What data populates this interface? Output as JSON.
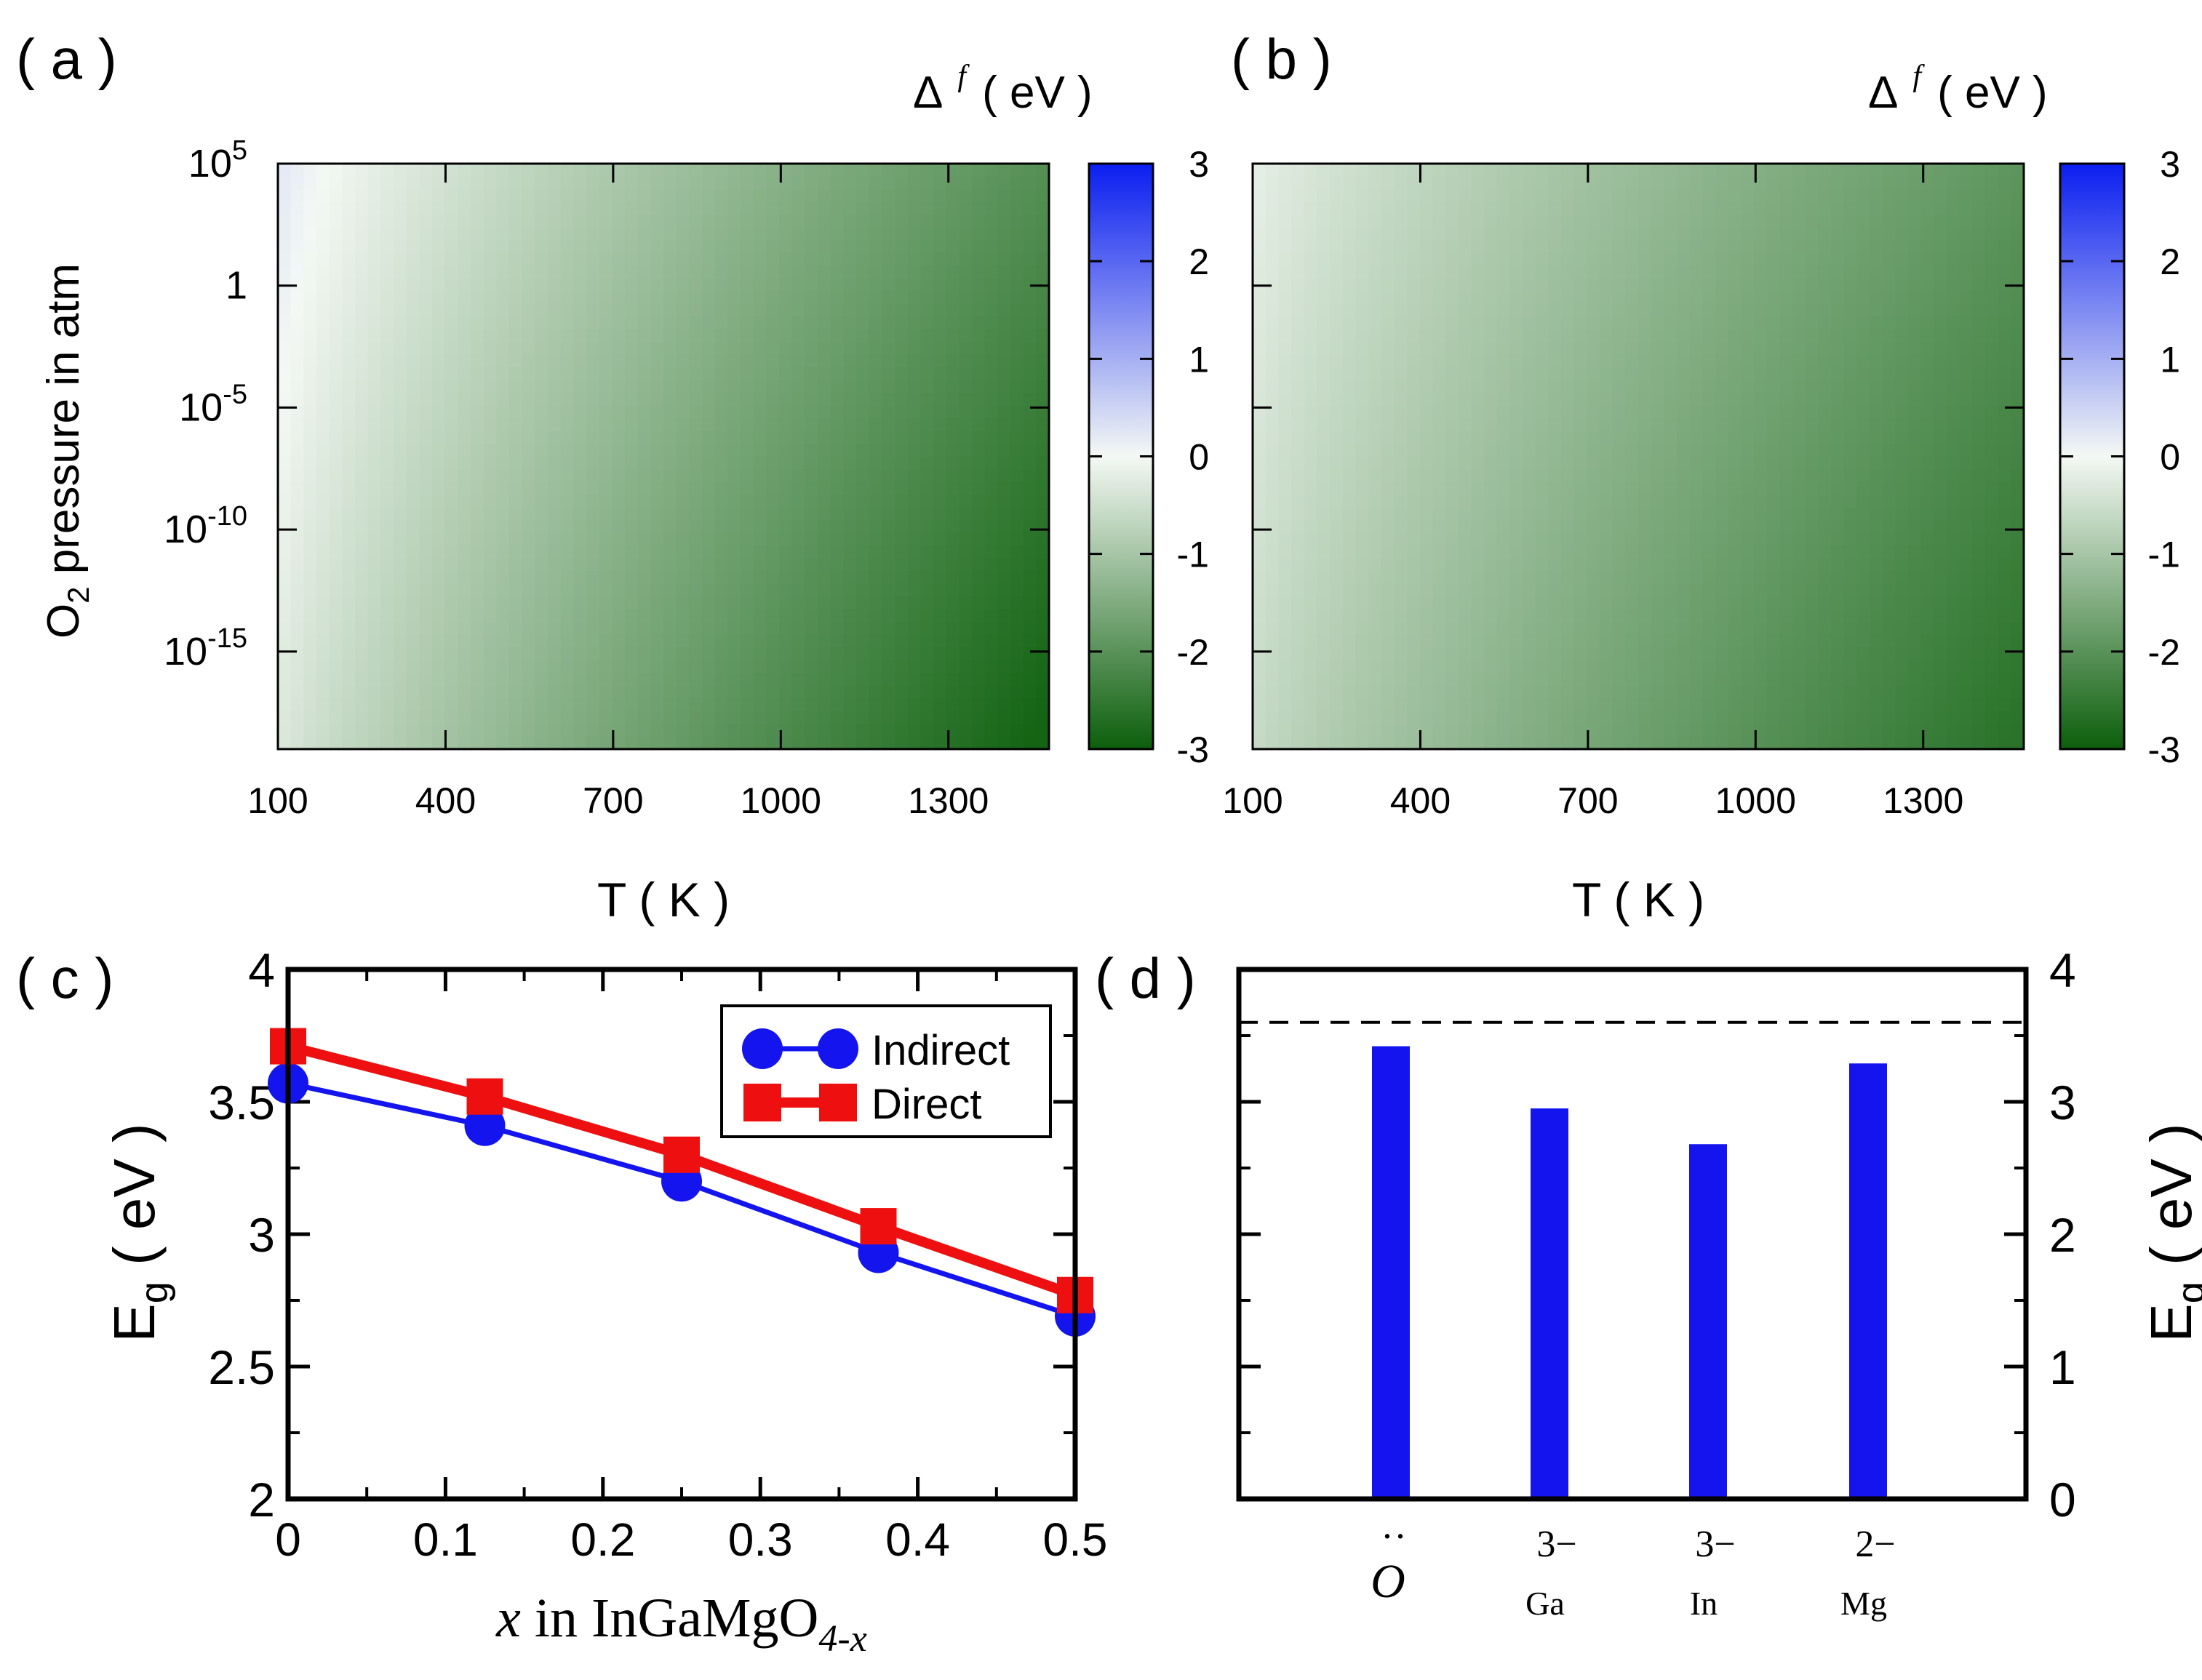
{
  "colors": {
    "map_low": "#0c5f0c",
    "map_zero": "#f4f8f4",
    "map_high": "#0a1ef0",
    "indirect": "#1414ee",
    "direct": "#ee1010",
    "bar": "#1414ee"
  },
  "chart_data": [
    {
      "type": "heatmap",
      "panel_label": "( a )",
      "xlabel": "T ( K )",
      "ylabel_main": "O",
      "ylabel_sub": "2",
      "ylabel_rest": " pressure in atm",
      "x_ticks": [
        "100",
        "400",
        "700",
        "1000",
        "1300"
      ],
      "x_tick_values": [
        100,
        400,
        700,
        1000,
        1300
      ],
      "xlim": [
        100,
        1480
      ],
      "y_ticks": [
        {
          "base": "10",
          "exp": "5",
          "log": 5
        },
        {
          "base": "1",
          "exp": "",
          "log": 0
        },
        {
          "base": "10",
          "exp": "-5",
          "log": -5
        },
        {
          "base": "10",
          "exp": "-10",
          "log": -10
        },
        {
          "base": "10",
          "exp": "-15",
          "log": -15
        }
      ],
      "ylim_log10": [
        -19,
        5
      ],
      "colorbar_label": "Δ",
      "colorbar_label_sup": "f",
      "colorbar_unit": "( eV )",
      "colorbar_ticks": [
        "3",
        "2",
        "1",
        "0",
        "-1",
        "-2",
        "-3"
      ],
      "colorbar_range": [
        -3,
        3
      ],
      "field_model": {
        "at_100K_high_p": 0.25,
        "at_1480K_low_p": -2.9,
        "logp_weight": 0.018
      }
    },
    {
      "type": "heatmap",
      "panel_label": "( b )",
      "xlabel": "T ( K )",
      "x_ticks": [
        "100",
        "400",
        "700",
        "1000",
        "1300"
      ],
      "x_tick_values": [
        100,
        400,
        700,
        1000,
        1300
      ],
      "xlim": [
        100,
        1480
      ],
      "ylim_log10": [
        -19,
        5
      ],
      "colorbar_label": "Δ",
      "colorbar_label_sup": "f",
      "colorbar_unit": "( eV )",
      "colorbar_ticks": [
        "3",
        "2",
        "1",
        "0",
        "-1",
        "-2",
        "-3"
      ],
      "colorbar_range": [
        -3,
        3
      ],
      "field_model": {
        "at_100K_high_p": -0.15,
        "at_1480K_low_p": -2.6,
        "logp_weight": 0.018
      }
    },
    {
      "type": "line",
      "panel_label": "( c )",
      "ylabel_main": "E",
      "ylabel_sub": "g",
      "ylabel_rest": " ( eV )",
      "xlabel_var": "x",
      "xlabel_text": " in InGaMgO",
      "xlabel_sub": "4-x",
      "x_ticks": [
        "0",
        "0.1",
        "0.2",
        "0.3",
        "0.4",
        "0.5"
      ],
      "y_ticks": [
        "2",
        "2.5",
        "3",
        "3.5",
        "4"
      ],
      "xlim": [
        0,
        0.5
      ],
      "ylim": [
        2,
        4
      ],
      "x": [
        0,
        0.125,
        0.25,
        0.375,
        0.5
      ],
      "series": [
        {
          "name": "Indirect",
          "values": [
            3.57,
            3.41,
            3.2,
            2.93,
            2.69
          ]
        },
        {
          "name": "Direct",
          "values": [
            3.71,
            3.52,
            3.3,
            3.03,
            2.77
          ]
        }
      ]
    },
    {
      "type": "bar",
      "panel_label": "( d )",
      "ylabel_main": "E",
      "ylabel_sub": "g",
      "ylabel_rest": " ( eV )",
      "y_ticks": [
        "0",
        "1",
        "2",
        "3",
        "4"
      ],
      "ylim": [
        0,
        4
      ],
      "reference_line": 3.6,
      "categories": [
        {
          "main": "O",
          "accent": "··",
          "sup": "",
          "sub": ""
        },
        {
          "main": "",
          "accent": "",
          "sup": "3−",
          "sub": "Ga"
        },
        {
          "main": "",
          "accent": "",
          "sup": "3−",
          "sub": "In"
        },
        {
          "main": "",
          "accent": "",
          "sup": "2−",
          "sub": "Mg"
        }
      ],
      "values": [
        3.42,
        2.95,
        2.68,
        3.29
      ]
    }
  ]
}
